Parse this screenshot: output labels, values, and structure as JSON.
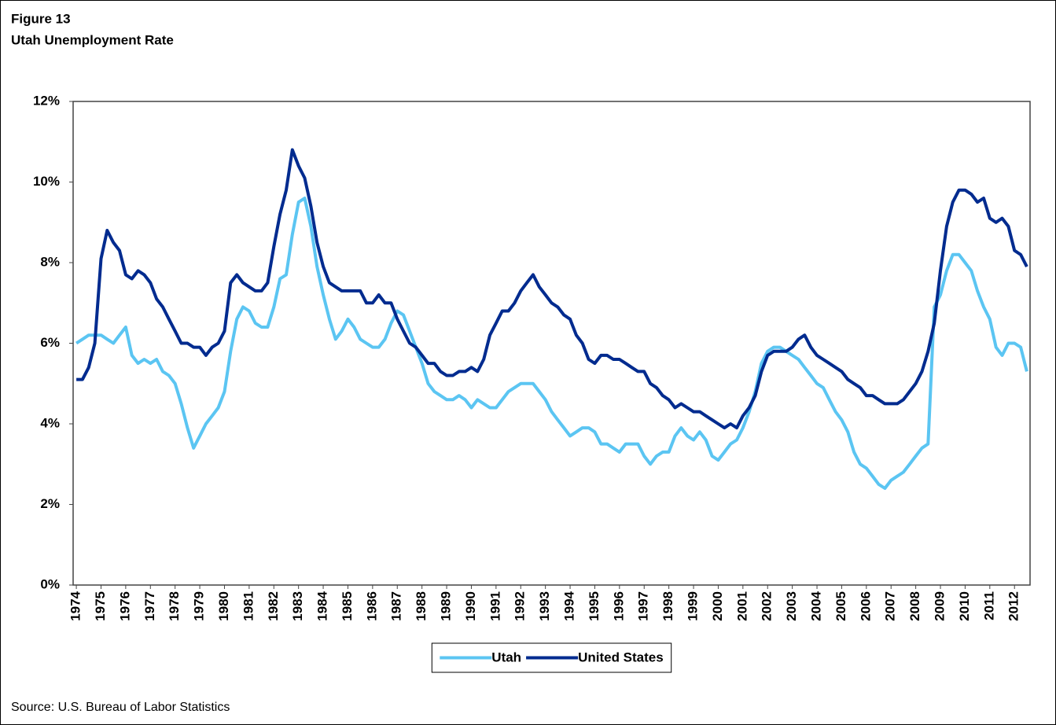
{
  "chart_data": {
    "type": "line",
    "title": "Figure 13",
    "subtitle": "Utah Unemployment Rate",
    "source": "Source: U.S. Bureau of Labor Statistics",
    "x": [
      1974,
      1974.25,
      1974.5,
      1974.75,
      1975,
      1975.25,
      1975.5,
      1975.75,
      1976,
      1976.25,
      1976.5,
      1976.75,
      1977,
      1977.25,
      1977.5,
      1977.75,
      1978,
      1978.25,
      1978.5,
      1978.75,
      1979,
      1979.25,
      1979.5,
      1979.75,
      1980,
      1980.25,
      1980.5,
      1980.75,
      1981,
      1981.25,
      1981.5,
      1981.75,
      1982,
      1982.25,
      1982.5,
      1982.75,
      1983,
      1983.25,
      1983.5,
      1983.75,
      1984,
      1984.25,
      1984.5,
      1984.75,
      1985,
      1985.25,
      1985.5,
      1985.75,
      1986,
      1986.25,
      1986.5,
      1986.75,
      1987,
      1987.25,
      1987.5,
      1987.75,
      1988,
      1988.25,
      1988.5,
      1988.75,
      1989,
      1989.25,
      1989.5,
      1989.75,
      1990,
      1990.25,
      1990.5,
      1990.75,
      1991,
      1991.25,
      1991.5,
      1991.75,
      1992,
      1992.25,
      1992.5,
      1992.75,
      1993,
      1993.25,
      1993.5,
      1993.75,
      1994,
      1994.25,
      1994.5,
      1994.75,
      1995,
      1995.25,
      1995.5,
      1995.75,
      1996,
      1996.25,
      1996.5,
      1996.75,
      1997,
      1997.25,
      1997.5,
      1997.75,
      1998,
      1998.25,
      1998.5,
      1998.75,
      1999,
      1999.25,
      1999.5,
      1999.75,
      2000,
      2000.25,
      2000.5,
      2000.75,
      2001,
      2001.25,
      2001.5,
      2001.75,
      2002,
      2002.25,
      2002.5,
      2002.75,
      2003,
      2003.25,
      2003.5,
      2003.75,
      2004,
      2004.25,
      2004.5,
      2004.75,
      2005,
      2005.25,
      2005.5,
      2005.75,
      2006,
      2006.25,
      2006.5,
      2006.75,
      2007,
      2007.25,
      2007.5,
      2007.75,
      2008,
      2008.25,
      2008.5,
      2008.75,
      2009,
      2009.25,
      2009.5,
      2009.75,
      2010,
      2010.25,
      2010.5,
      2010.75,
      2011,
      2011.25,
      2011.5,
      2011.75,
      2012,
      2012.25,
      2012.5
    ],
    "series": [
      {
        "name": "Utah",
        "color": "#5bc5f2",
        "values": [
          6.0,
          6.1,
          6.2,
          6.2,
          6.2,
          6.1,
          6.0,
          6.2,
          6.4,
          5.7,
          5.5,
          5.6,
          5.5,
          5.6,
          5.3,
          5.2,
          5.0,
          4.5,
          3.9,
          3.4,
          3.7,
          4.0,
          4.2,
          4.4,
          4.8,
          5.8,
          6.6,
          6.9,
          6.8,
          6.5,
          6.4,
          6.4,
          6.9,
          7.6,
          7.7,
          8.7,
          9.5,
          9.6,
          8.9,
          7.9,
          7.2,
          6.6,
          6.1,
          6.3,
          6.6,
          6.4,
          6.1,
          6.0,
          5.9,
          5.9,
          6.1,
          6.5,
          6.8,
          6.7,
          6.3,
          5.9,
          5.5,
          5.0,
          4.8,
          4.7,
          4.6,
          4.6,
          4.7,
          4.6,
          4.4,
          4.6,
          4.5,
          4.4,
          4.4,
          4.6,
          4.8,
          4.9,
          5.0,
          5.0,
          5.0,
          4.8,
          4.6,
          4.3,
          4.1,
          3.9,
          3.7,
          3.8,
          3.9,
          3.9,
          3.8,
          3.5,
          3.5,
          3.4,
          3.3,
          3.5,
          3.5,
          3.5,
          3.2,
          3.0,
          3.2,
          3.3,
          3.3,
          3.7,
          3.9,
          3.7,
          3.6,
          3.8,
          3.6,
          3.2,
          3.1,
          3.3,
          3.5,
          3.6,
          3.9,
          4.3,
          4.8,
          5.5,
          5.8,
          5.9,
          5.9,
          5.8,
          5.7,
          5.6,
          5.4,
          5.2,
          5.0,
          4.9,
          4.6,
          4.3,
          4.1,
          3.8,
          3.3,
          3.0,
          2.9,
          2.7,
          2.5,
          2.4,
          2.6,
          2.7,
          2.8,
          3.0,
          3.2,
          3.4,
          3.5,
          6.9,
          7.2,
          7.8,
          8.2,
          8.2,
          8.0,
          7.8,
          7.3,
          6.9,
          6.6,
          5.9,
          5.7,
          6.0,
          6.0,
          5.9,
          5.3
        ]
      },
      {
        "name": "United States",
        "color": "#002b8f",
        "values": [
          5.1,
          5.1,
          5.4,
          6.0,
          8.1,
          8.8,
          8.5,
          8.3,
          7.7,
          7.6,
          7.8,
          7.7,
          7.5,
          7.1,
          6.9,
          6.6,
          6.3,
          6.0,
          6.0,
          5.9,
          5.9,
          5.7,
          5.9,
          6.0,
          6.3,
          7.5,
          7.7,
          7.5,
          7.4,
          7.3,
          7.3,
          7.5,
          8.4,
          9.2,
          9.8,
          10.8,
          10.4,
          10.1,
          9.4,
          8.5,
          7.9,
          7.5,
          7.4,
          7.3,
          7.3,
          7.3,
          7.3,
          7.0,
          7.0,
          7.2,
          7.0,
          7.0,
          6.6,
          6.3,
          6.0,
          5.9,
          5.7,
          5.5,
          5.5,
          5.3,
          5.2,
          5.2,
          5.3,
          5.3,
          5.4,
          5.3,
          5.6,
          6.2,
          6.5,
          6.8,
          6.8,
          7.0,
          7.3,
          7.5,
          7.7,
          7.4,
          7.2,
          7.0,
          6.9,
          6.7,
          6.6,
          6.2,
          6.0,
          5.6,
          5.5,
          5.7,
          5.7,
          5.6,
          5.6,
          5.5,
          5.4,
          5.3,
          5.3,
          5.0,
          4.9,
          4.7,
          4.6,
          4.4,
          4.5,
          4.4,
          4.3,
          4.3,
          4.2,
          4.1,
          4.0,
          3.9,
          4.0,
          3.9,
          4.2,
          4.4,
          4.7,
          5.3,
          5.7,
          5.8,
          5.8,
          5.8,
          5.9,
          6.1,
          6.2,
          5.9,
          5.7,
          5.6,
          5.5,
          5.4,
          5.3,
          5.1,
          5.0,
          4.9,
          4.7,
          4.7,
          4.6,
          4.5,
          4.5,
          4.5,
          4.6,
          4.8,
          5.0,
          5.3,
          5.8,
          6.5,
          7.8,
          8.9,
          9.5,
          9.8,
          9.8,
          9.7,
          9.5,
          9.6,
          9.1,
          9.0,
          9.1,
          8.9,
          8.3,
          8.2,
          7.9
        ]
      }
    ],
    "xlim": [
      1973.87,
      2012.63
    ],
    "xticks": [
      1974,
      1975,
      1976,
      1977,
      1978,
      1979,
      1980,
      1981,
      1982,
      1983,
      1984,
      1985,
      1986,
      1987,
      1988,
      1989,
      1990,
      1991,
      1992,
      1993,
      1994,
      1995,
      1996,
      1997,
      1998,
      1999,
      2000,
      2001,
      2002,
      2003,
      2004,
      2005,
      2006,
      2007,
      2008,
      2009,
      2010,
      2011,
      2012
    ],
    "ylim": [
      0,
      12
    ],
    "yticks": [
      {
        "value": 0,
        "label": "0%"
      },
      {
        "value": 2,
        "label": "2%"
      },
      {
        "value": 4,
        "label": "4%"
      },
      {
        "value": 6,
        "label": "6%"
      },
      {
        "value": 8,
        "label": "8%"
      },
      {
        "value": 10,
        "label": "10%"
      },
      {
        "value": 12,
        "label": "12%"
      }
    ],
    "grid": false,
    "legend": "bottom"
  }
}
